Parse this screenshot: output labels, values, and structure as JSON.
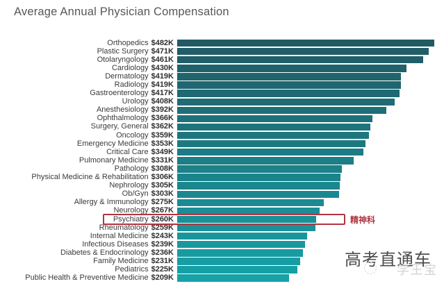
{
  "title": "Average Annual Physician Compensation",
  "chart_data": {
    "type": "bar",
    "orientation": "horizontal",
    "title": "Average Annual Physician Compensation",
    "grid": false,
    "legend": false,
    "xlim": [
      0,
      500
    ],
    "categories": [
      "Orthopedics",
      "Plastic Surgery",
      "Otolaryngology",
      "Cardiology",
      "Dermatology",
      "Radiology",
      "Gastroenterology",
      "Urology",
      "Anesthesiology",
      "Ophthalmology",
      "Surgery, General",
      "Oncology",
      "Emergency Medicine",
      "Critical Care",
      "Pulmonary Medicine",
      "Pathology",
      "Physical Medicine & Rehabilitation",
      "Nephrology",
      "Ob/Gyn",
      "Allergy & Immunology",
      "Neurology",
      "Psychiatry",
      "Rheumatology",
      "Internal Medicine",
      "Infectious Diseases",
      "Diabetes & Endocrinology",
      "Family Medicine",
      "Pediatrics",
      "Public Health & Preventive Medicine"
    ],
    "values": [
      482,
      471,
      461,
      430,
      419,
      419,
      417,
      408,
      392,
      366,
      362,
      359,
      353,
      349,
      331,
      308,
      306,
      305,
      303,
      275,
      267,
      260,
      259,
      243,
      239,
      236,
      231,
      225,
      209
    ],
    "value_labels": [
      "$482K",
      "$471K",
      "$461K",
      "$430K",
      "$419K",
      "$419K",
      "$417K",
      "$408K",
      "$392K",
      "$366K",
      "$362K",
      "$359K",
      "$353K",
      "$349K",
      "$331K",
      "$308K",
      "$306K",
      "$305K",
      "$303K",
      "$275K",
      "$267K",
      "$260K",
      "$259K",
      "$243K",
      "$239K",
      "$236K",
      "$231K",
      "$225K",
      "$209K"
    ],
    "bar_color_start": "#215a64",
    "bar_color_end": "#17a2a8",
    "highlight": {
      "category": "Psychiatry",
      "index": 21,
      "annotation": "精神科",
      "box_color": "#b13440",
      "text_color": "#b13440"
    }
  },
  "watermarks": {
    "primary": "高考直通车",
    "secondary": "学王宝"
  },
  "colors": {
    "title": "#55565a",
    "label": "#3a3a3a",
    "background": "#ffffff"
  }
}
